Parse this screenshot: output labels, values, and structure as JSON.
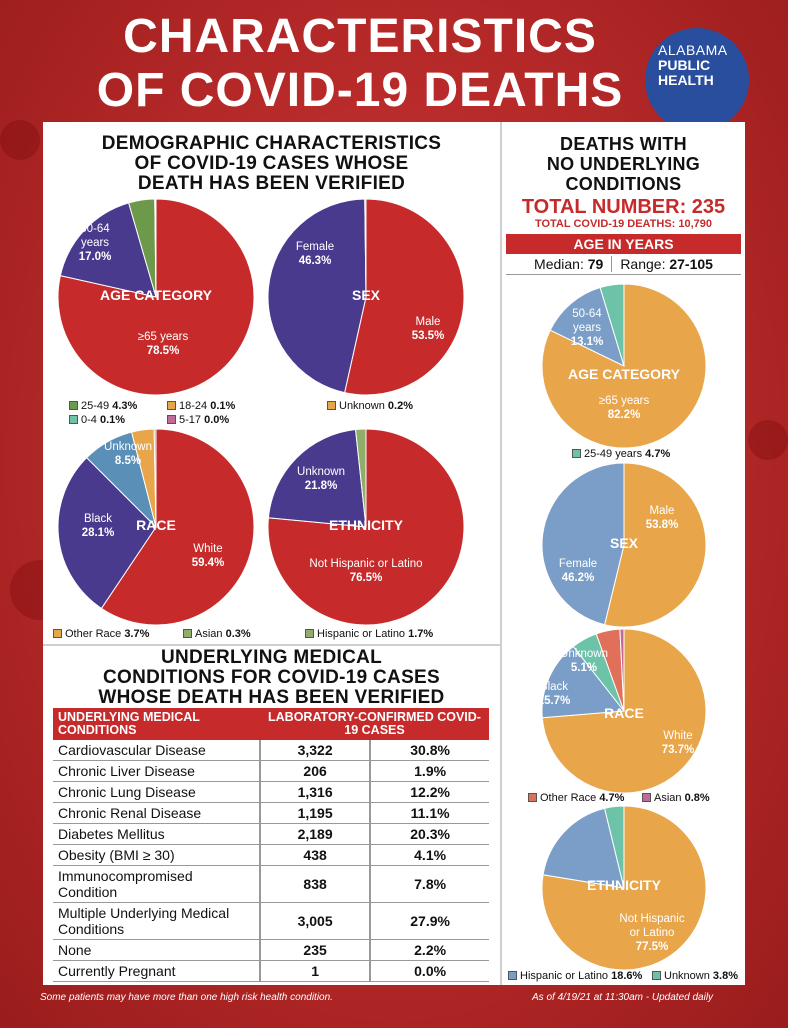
{
  "title": {
    "line1": "CHARACTERISTICS",
    "line2": "OF COVID-19 DEATHS"
  },
  "logo": {
    "line1": "ALABAMA",
    "line2": "PUBLIC",
    "line3": "HEALTH"
  },
  "left": {
    "heading": [
      "DEMOGRAPHIC CHARACTERISTICS",
      "OF COVID-19 CASES WHOSE",
      "DEATH HAS BEEN VERIFIED"
    ],
    "conditions_heading": [
      "UNDERLYING MEDICAL",
      "CONDITIONS FOR COVID-19 CASES",
      "WHOSE DEATH HAS BEEN VERIFIED"
    ]
  },
  "right": {
    "heading": [
      "DEATHS WITH",
      "NO UNDERLYING",
      "CONDITIONS"
    ],
    "total_number": "TOTAL NUMBER: 235",
    "total_deaths": "TOTAL COVID-19 DEATHS: 10,790",
    "age_bar": "AGE IN YEARS",
    "median_label": "Median:",
    "median_value": "79",
    "range_label": "Range:",
    "range_value": "27-105"
  },
  "footer": {
    "left": "Some patients may have more than one high risk health condition.",
    "right": "As of 4/19/21 at 11:30am - Updated daily"
  },
  "colors": {
    "red": "#c62a2a",
    "purple": "#4a3a8e",
    "green": "#6c9a4a",
    "orange": "#e8a54a",
    "blue": "#7a9ec8",
    "teal": "#6cc3a8"
  },
  "chart_data": [
    {
      "type": "pie",
      "title": "AGE CATEGORY",
      "slices": [
        {
          "name": "≥65 years",
          "value": 78.5,
          "color": "#c62a2a"
        },
        {
          "name": "50-64 years",
          "value": 17.0,
          "color": "#4a3a8e"
        },
        {
          "name": "25-49",
          "value": 4.3,
          "color": "#6c9a4a"
        },
        {
          "name": "18-24",
          "value": 0.1,
          "color": "#e8a54a"
        },
        {
          "name": "0-4",
          "value": 0.1,
          "color": "#6cc3a8"
        },
        {
          "name": "5-17",
          "value": 0.0,
          "color": "#c06a9a"
        }
      ],
      "labels": [
        [
          "≥65 years",
          "78.5%"
        ],
        [
          "50-64",
          "years",
          "17.0%"
        ]
      ],
      "legend_text": [
        "25-49",
        "18-24",
        "0-4",
        "5-17"
      ],
      "legend_values": [
        "4.3%",
        "0.1%",
        "0.1%",
        "0.0%"
      ]
    },
    {
      "type": "pie",
      "title": "SEX",
      "slices": [
        {
          "name": "Male",
          "value": 53.5,
          "color": "#c62a2a"
        },
        {
          "name": "Female",
          "value": 46.3,
          "color": "#4a3a8e"
        },
        {
          "name": "Unknown",
          "value": 0.2,
          "color": "#e8a54a"
        }
      ],
      "labels": [
        [
          "Male",
          "53.5%"
        ],
        [
          "Female",
          "46.3%"
        ]
      ],
      "legend_text": [
        "Unknown"
      ],
      "legend_values": [
        "0.2%"
      ]
    },
    {
      "type": "pie",
      "title": "RACE",
      "slices": [
        {
          "name": "White",
          "value": 59.4,
          "color": "#c62a2a"
        },
        {
          "name": "Black",
          "value": 28.1,
          "color": "#4a3a8e"
        },
        {
          "name": "Unknown",
          "value": 8.5,
          "color": "#5a8fb8"
        },
        {
          "name": "Other Race",
          "value": 3.7,
          "color": "#e8a54a"
        },
        {
          "name": "Asian",
          "value": 0.3,
          "color": "#8fae6a"
        }
      ],
      "labels": [
        [
          "White",
          "59.4%"
        ],
        [
          "Black",
          "28.1%"
        ],
        [
          "Unknown",
          "8.5%"
        ]
      ],
      "legend_text": [
        "Other Race",
        "Asian"
      ],
      "legend_values": [
        "3.7%",
        "0.3%"
      ]
    },
    {
      "type": "pie",
      "title": "ETHNICITY",
      "slices": [
        {
          "name": "Not Hispanic or Latino",
          "value": 76.5,
          "color": "#c62a2a"
        },
        {
          "name": "Unknown",
          "value": 21.8,
          "color": "#4a3a8e"
        },
        {
          "name": "Hispanic or Latino",
          "value": 1.7,
          "color": "#8fae6a"
        }
      ],
      "labels": [
        [
          "Not Hispanic or Latino",
          "76.5%"
        ],
        [
          "Unknown",
          "21.8%"
        ]
      ],
      "legend_text": [
        "Hispanic or Latino"
      ],
      "legend_values": [
        "1.7%"
      ]
    },
    {
      "type": "pie",
      "title": "AGE CATEGORY",
      "slices": [
        {
          "name": "≥65 years",
          "value": 82.2,
          "color": "#e8a54a"
        },
        {
          "name": "50-64 years",
          "value": 13.1,
          "color": "#7a9ec8"
        },
        {
          "name": "25-49 years",
          "value": 4.7,
          "color": "#6cc3a8"
        }
      ],
      "labels": [
        [
          "≥65 years",
          "82.2%"
        ],
        [
          "50-64",
          "years",
          "13.1%"
        ]
      ],
      "legend_text": [
        "25-49 years"
      ],
      "legend_values": [
        "4.7%"
      ]
    },
    {
      "type": "pie",
      "title": "SEX",
      "slices": [
        {
          "name": "Male",
          "value": 53.8,
          "color": "#e8a54a"
        },
        {
          "name": "Female",
          "value": 46.2,
          "color": "#7a9ec8"
        }
      ],
      "labels": [
        [
          "Male",
          "53.8%"
        ],
        [
          "Female",
          "46.2%"
        ]
      ],
      "legend_text": [],
      "legend_values": []
    },
    {
      "type": "pie",
      "title": "RACE",
      "slices": [
        {
          "name": "White",
          "value": 73.7,
          "color": "#e8a54a"
        },
        {
          "name": "Black",
          "value": 15.7,
          "color": "#7a9ec8"
        },
        {
          "name": "Unknown",
          "value": 5.1,
          "color": "#6cc3a8"
        },
        {
          "name": "Other Race",
          "value": 4.7,
          "color": "#e0705a"
        },
        {
          "name": "Asian",
          "value": 0.8,
          "color": "#c06a9a"
        }
      ],
      "labels": [
        [
          "White",
          "73.7%"
        ],
        [
          "Black",
          "15.7%"
        ],
        [
          "Unknown",
          "5.1%"
        ]
      ],
      "legend_text": [
        "Other Race",
        "Asian"
      ],
      "legend_values": [
        "4.7%",
        "0.8%"
      ]
    },
    {
      "type": "pie",
      "title": "ETHNICITY",
      "slices": [
        {
          "name": "Not Hispanic or Latino",
          "value": 77.5,
          "color": "#e8a54a"
        },
        {
          "name": "Hispanic or Latino",
          "value": 18.6,
          "color": "#7a9ec8"
        },
        {
          "name": "Unknown",
          "value": 3.8,
          "color": "#6cc3a8"
        }
      ],
      "labels": [
        [
          "Not Hispanic",
          "or Latino",
          "77.5%"
        ]
      ],
      "legend_text": [
        "Hispanic or Latino",
        "Unknown"
      ],
      "legend_values": [
        "18.6%",
        "3.8%"
      ]
    },
    {
      "type": "table",
      "header_left": "UNDERLYING MEDICAL CONDITIONS",
      "header_right": "LABORATORY-CONFIRMED COVID-19 CASES",
      "rows": [
        {
          "condition": "Cardiovascular Disease",
          "count": "3,322",
          "percent": "30.8%"
        },
        {
          "condition": "Chronic Liver Disease",
          "count": "206",
          "percent": "1.9%"
        },
        {
          "condition": "Chronic Lung Disease",
          "count": "1,316",
          "percent": "12.2%"
        },
        {
          "condition": "Chronic Renal Disease",
          "count": "1,195",
          "percent": "11.1%"
        },
        {
          "condition": "Diabetes Mellitus",
          "count": "2,189",
          "percent": "20.3%"
        },
        {
          "condition": "Obesity (BMI ≥ 30)",
          "count": "438",
          "percent": "4.1%"
        },
        {
          "condition": "Immunocompromised Condition",
          "count": "838",
          "percent": "7.8%"
        },
        {
          "condition": "Multiple Underlying Medical Conditions",
          "count": "3,005",
          "percent": "27.9%"
        },
        {
          "condition": "None",
          "count": "235",
          "percent": "2.2%"
        },
        {
          "condition": "Currently Pregnant",
          "count": "1",
          "percent": "0.0%"
        }
      ]
    }
  ]
}
